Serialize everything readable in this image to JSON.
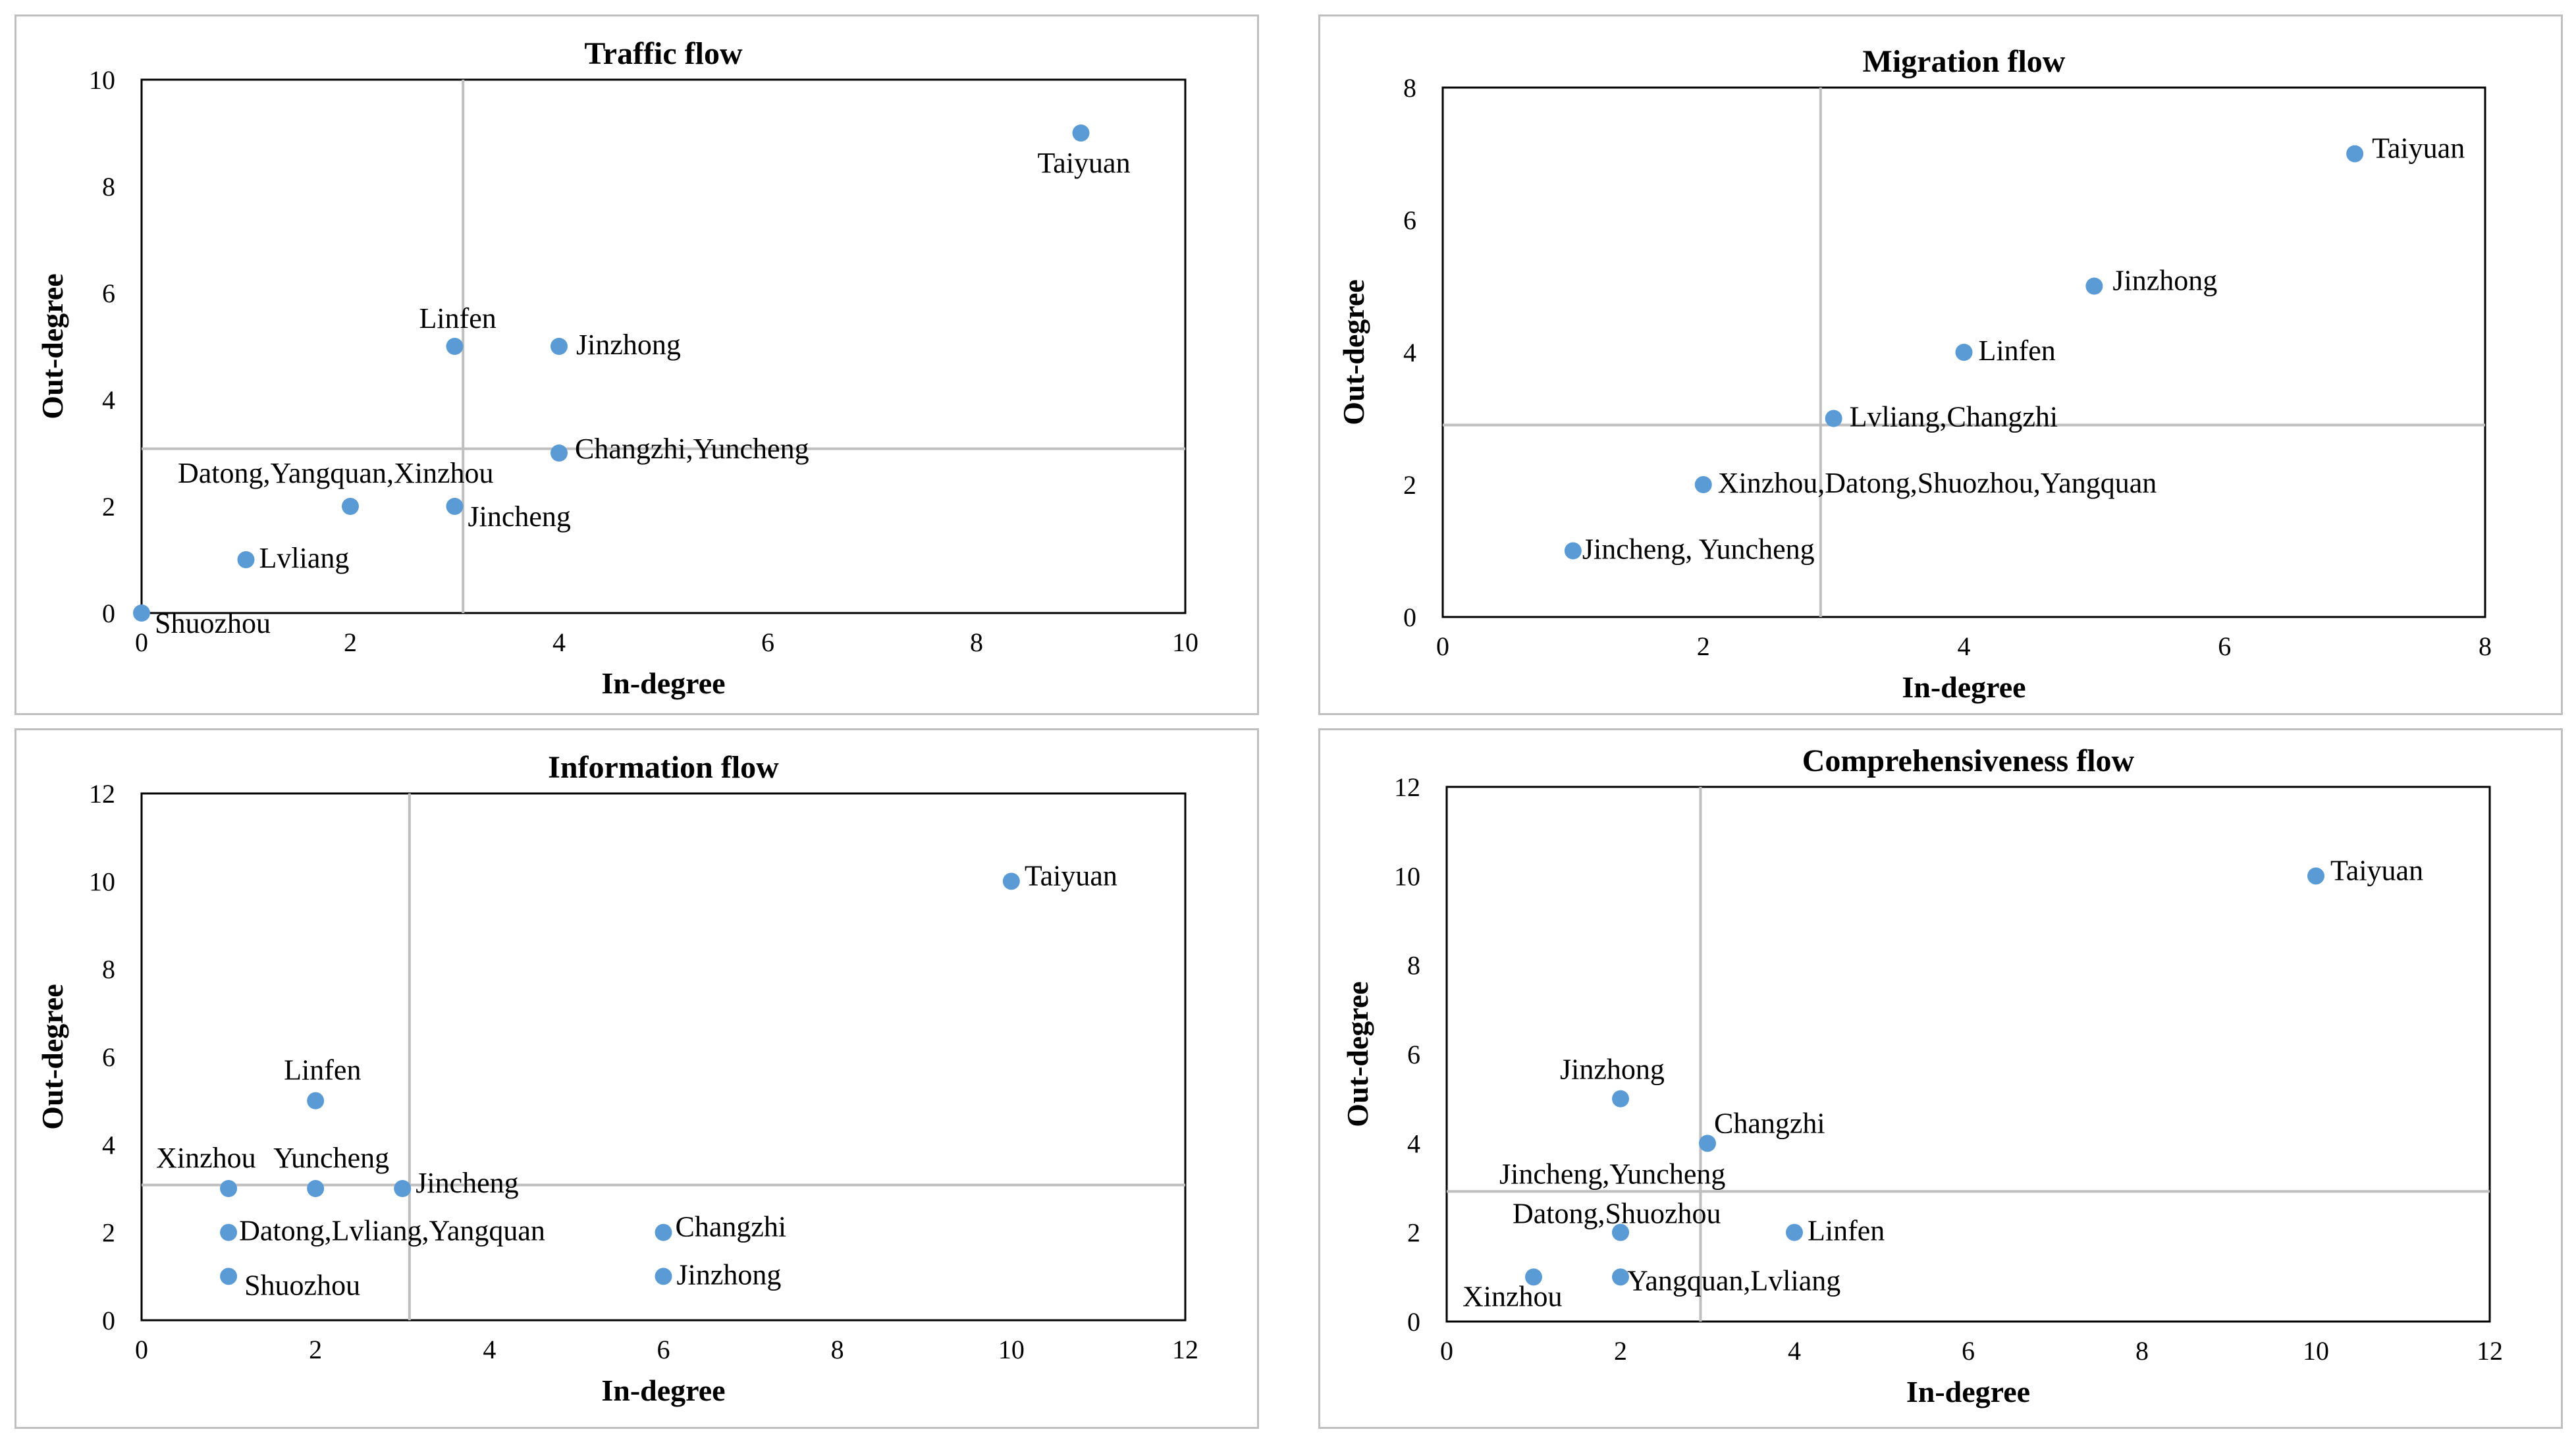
{
  "chart_data": [
    {
      "type": "scatter",
      "title": "Traffic flow",
      "xlabel": "In-degree",
      "ylabel": "Out-degree",
      "xlim": [
        0,
        10
      ],
      "ylim": [
        0,
        10
      ],
      "xticks": [
        "0",
        "2",
        "4",
        "6",
        "8",
        "10"
      ],
      "yticks": [
        "0",
        "2",
        "4",
        "6",
        "8",
        "10"
      ],
      "reference": {
        "x": 3.08,
        "y": 3.08
      },
      "points": [
        {
          "label": "Taiyuan",
          "x": 9,
          "y": 9
        },
        {
          "label": "Linfen",
          "x": 3,
          "y": 5
        },
        {
          "label": "Jinzhong",
          "x": 4,
          "y": 5
        },
        {
          "label": "Changzhi,Yuncheng",
          "x": 4,
          "y": 3
        },
        {
          "label": "Datong,Yangquan,Xinzhou",
          "x": 2,
          "y": 2
        },
        {
          "label": "Jincheng",
          "x": 3,
          "y": 2
        },
        {
          "label": "Lvliang",
          "x": 1,
          "y": 1
        },
        {
          "label": "Shuozhou",
          "x": 0,
          "y": 0
        }
      ]
    },
    {
      "type": "scatter",
      "title": "Migration flow",
      "xlabel": "In-degree",
      "ylabel": "Out-degree",
      "xlim": [
        0,
        8
      ],
      "ylim": [
        0,
        8
      ],
      "xticks": [
        "0",
        "2",
        "4",
        "6",
        "8"
      ],
      "yticks": [
        "0",
        "2",
        "4",
        "6",
        "8"
      ],
      "reference": {
        "x": 2.9,
        "y": 2.9
      },
      "points": [
        {
          "label": "Taiyuan",
          "x": 7,
          "y": 7
        },
        {
          "label": "Jinzhong",
          "x": 5,
          "y": 5
        },
        {
          "label": "Linfen",
          "x": 4,
          "y": 4
        },
        {
          "label": "Lvliang,Changzhi",
          "x": 3,
          "y": 3
        },
        {
          "label": "Xinzhou,Datong,Shuozhou,Yangquan",
          "x": 2,
          "y": 2
        },
        {
          "label": "Jincheng, Yuncheng",
          "x": 1,
          "y": 1
        }
      ]
    },
    {
      "type": "scatter",
      "title": "Information flow",
      "xlabel": "In-degree",
      "ylabel": "Out-degree",
      "xlim": [
        0,
        12
      ],
      "ylim": [
        0,
        12
      ],
      "xticks": [
        "0",
        "2",
        "4",
        "6",
        "8",
        "10",
        "12"
      ],
      "yticks": [
        "0",
        "2",
        "4",
        "6",
        "8",
        "10",
        "12"
      ],
      "reference": {
        "x": 3.08,
        "y": 3.08
      },
      "points": [
        {
          "label": "Taiyuan",
          "x": 10,
          "y": 10
        },
        {
          "label": "Linfen",
          "x": 2,
          "y": 5
        },
        {
          "label": "Xinzhou",
          "x": 1,
          "y": 3
        },
        {
          "label": "Yuncheng",
          "x": 2,
          "y": 3
        },
        {
          "label": "Jincheng",
          "x": 3,
          "y": 3
        },
        {
          "label": "Datong,Lvliang,Yangquan",
          "x": 1,
          "y": 2
        },
        {
          "label": "Shuozhou",
          "x": 1,
          "y": 1
        },
        {
          "label": "Changzhi",
          "x": 6,
          "y": 2
        },
        {
          "label": "Jinzhong",
          "x": 6,
          "y": 1
        }
      ]
    },
    {
      "type": "scatter",
      "title": "Comprehensiveness flow",
      "xlabel": "In-degree",
      "ylabel": "Out-degree",
      "xlim": [
        0,
        12
      ],
      "ylim": [
        0,
        12
      ],
      "xticks": [
        "0",
        "2",
        "4",
        "6",
        "8",
        "10",
        "12"
      ],
      "yticks": [
        "0",
        "2",
        "4",
        "6",
        "8",
        "10",
        "12"
      ],
      "reference": {
        "x": 2.92,
        "y": 2.92
      },
      "points": [
        {
          "label": "Taiyuan",
          "x": 10,
          "y": 10
        },
        {
          "label": "Jinzhong",
          "x": 2,
          "y": 5
        },
        {
          "label": "Changzhi",
          "x": 3,
          "y": 4
        },
        {
          "label": "Jincheng,Yuncheng",
          "x": 2,
          "y": 2
        },
        {
          "label": "Datong,Shuozhou",
          "x": 2,
          "y": 2
        },
        {
          "label": "Linfen",
          "x": 4,
          "y": 2
        },
        {
          "label": "Xinzhou",
          "x": 1,
          "y": 1
        },
        {
          "label": "Yangquan,Lvliang",
          "x": 2,
          "y": 1
        }
      ]
    }
  ]
}
